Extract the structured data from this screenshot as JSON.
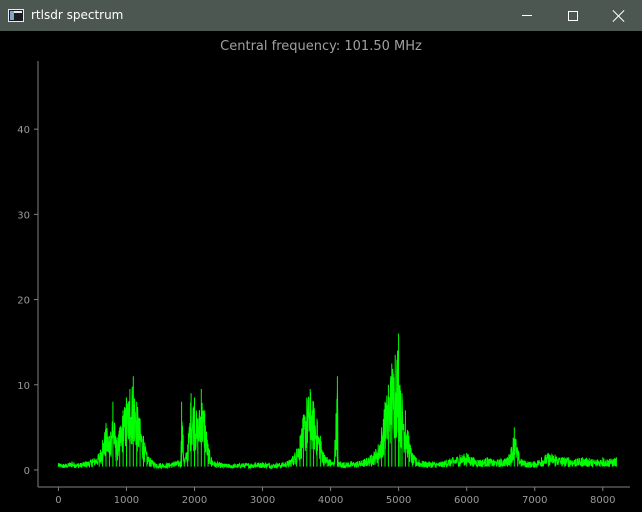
{
  "window": {
    "title": "rtlsdr spectrum",
    "icon": "app-window-icon"
  },
  "plot_title": "Central frequency: 101.50 MHz",
  "colors": {
    "trace": "#00ff00",
    "background": "#000000",
    "axis": "#808080",
    "titlebar": "#4b5750"
  },
  "chart_data": {
    "type": "line",
    "title": "Central frequency: 101.50 MHz",
    "xlabel": "",
    "ylabel": "",
    "xlim": [
      -300,
      8400
    ],
    "ylim": [
      -2,
      48
    ],
    "xticks": [
      0,
      1000,
      2000,
      3000,
      4000,
      5000,
      6000,
      7000,
      8000
    ],
    "yticks": [
      0,
      10,
      20,
      30,
      40
    ],
    "grid": false,
    "series": [
      {
        "color": "#00ff00",
        "x": [
          0,
          100,
          200,
          300,
          400,
          500,
          600,
          650,
          700,
          750,
          800,
          850,
          900,
          950,
          1000,
          1050,
          1100,
          1150,
          1200,
          1250,
          1300,
          1350,
          1400,
          1500,
          1600,
          1700,
          1800,
          1810,
          1850,
          1900,
          1950,
          2000,
          2050,
          2100,
          2150,
          2200,
          2250,
          2300,
          2400,
          2500,
          2600,
          2700,
          2800,
          2900,
          3000,
          3100,
          3200,
          3300,
          3400,
          3500,
          3550,
          3600,
          3650,
          3700,
          3750,
          3800,
          3850,
          3900,
          3950,
          4000,
          4050,
          4100,
          4110,
          4150,
          4200,
          4300,
          4400,
          4500,
          4600,
          4700,
          4750,
          4800,
          4850,
          4900,
          4950,
          5000,
          5020,
          5050,
          5100,
          5150,
          5200,
          5250,
          5300,
          5400,
          5500,
          5600,
          5700,
          5800,
          5900,
          6000,
          6100,
          6200,
          6300,
          6400,
          6500,
          6600,
          6650,
          6700,
          6750,
          6800,
          6900,
          7000,
          7100,
          7200,
          7300,
          7400,
          7500,
          7600,
          7700,
          7800,
          7900,
          8000,
          8100,
          8200
        ],
        "values": [
          0.8,
          0.7,
          1.0,
          0.8,
          1.0,
          1.3,
          2.0,
          3.5,
          5.5,
          4.0,
          8.0,
          3.5,
          5.0,
          7.0,
          8.5,
          9.5,
          11.0,
          8.0,
          6.0,
          4.0,
          2.0,
          1.4,
          1.0,
          0.8,
          0.8,
          1.0,
          1.2,
          8.0,
          1.2,
          3.0,
          9.0,
          8.5,
          6.0,
          9.5,
          7.0,
          3.0,
          1.5,
          1.0,
          0.8,
          0.7,
          0.7,
          0.8,
          0.8,
          0.9,
          0.9,
          0.8,
          0.8,
          0.9,
          1.2,
          2.5,
          4.0,
          6.5,
          8.5,
          9.5,
          8.0,
          6.0,
          4.0,
          2.0,
          1.5,
          1.2,
          1.0,
          11.0,
          1.0,
          1.0,
          0.9,
          1.0,
          1.0,
          1.3,
          1.8,
          3.0,
          5.0,
          8.0,
          10.0,
          12.5,
          13.5,
          16.0,
          10.0,
          9.0,
          7.0,
          4.0,
          2.0,
          1.5,
          1.2,
          1.0,
          1.0,
          0.9,
          1.2,
          1.5,
          1.8,
          2.0,
          1.5,
          1.2,
          1.5,
          1.2,
          1.3,
          1.5,
          2.5,
          5.0,
          2.5,
          1.3,
          1.0,
          1.0,
          1.5,
          2.0,
          1.8,
          1.5,
          1.5,
          1.3,
          1.5,
          1.4,
          1.2,
          1.5,
          1.3,
          1.5
        ]
      }
    ]
  }
}
